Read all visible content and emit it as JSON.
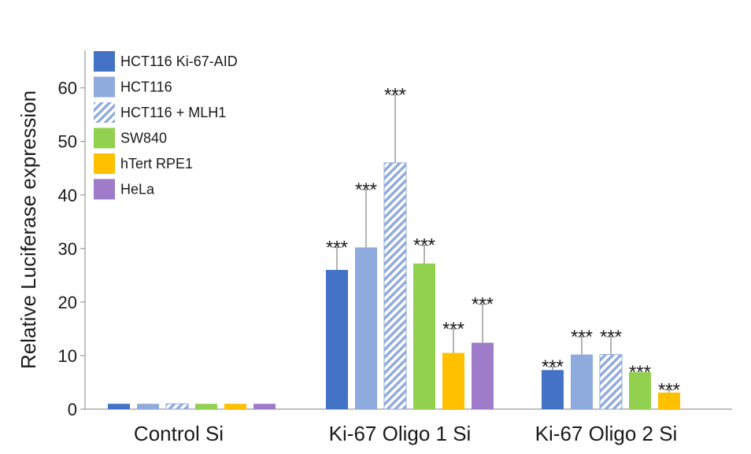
{
  "chart_data": {
    "type": "bar",
    "title": "",
    "xlabel": "",
    "ylabel": "Relative Luciferase expression",
    "ylim": [
      0,
      67
    ],
    "yticks": [
      0,
      10,
      20,
      30,
      40,
      50,
      60
    ],
    "grid": false,
    "legend_position": "top-left",
    "categories": [
      "Control Si",
      "Ki-67 Oligo 1 Si",
      "Ki-67 Oligo 2 Si"
    ],
    "significance_label": "***",
    "series": [
      {
        "name": "HCT116 Ki-67-AID",
        "color": "#4472c4",
        "pattern": "solid",
        "values": [
          1,
          26,
          7.3
        ],
        "errors": [
          0,
          4.2,
          0.6
        ],
        "significant": [
          false,
          true,
          true
        ]
      },
      {
        "name": "HCT116",
        "color": "#8faadc",
        "pattern": "solid",
        "values": [
          1,
          30.2,
          10.2
        ],
        "errors": [
          0,
          10.8,
          3.3
        ],
        "significant": [
          false,
          true,
          true
        ]
      },
      {
        "name": "HCT116 + MLH1",
        "color": "#8faadc",
        "pattern": "hatched",
        "values": [
          1,
          46,
          10.2
        ],
        "errors": [
          0,
          12.7,
          3.3
        ],
        "significant": [
          false,
          true,
          true
        ]
      },
      {
        "name": "SW840",
        "color": "#92d050",
        "pattern": "solid",
        "values": [
          1,
          27.2,
          6.9
        ],
        "errors": [
          0,
          3.4,
          0
        ],
        "significant": [
          false,
          true,
          true
        ]
      },
      {
        "name": "hTert RPE1",
        "color": "#ffc000",
        "pattern": "solid",
        "values": [
          1,
          10.5,
          3.1
        ],
        "errors": [
          0,
          4.5,
          0.5
        ],
        "significant": [
          false,
          true,
          true
        ]
      },
      {
        "name": "HeLa",
        "color": "#9e7cc9",
        "pattern": "solid",
        "values": [
          1,
          12.4,
          null
        ],
        "errors": [
          0,
          7.2,
          null
        ],
        "significant": [
          false,
          true,
          false
        ]
      }
    ]
  }
}
